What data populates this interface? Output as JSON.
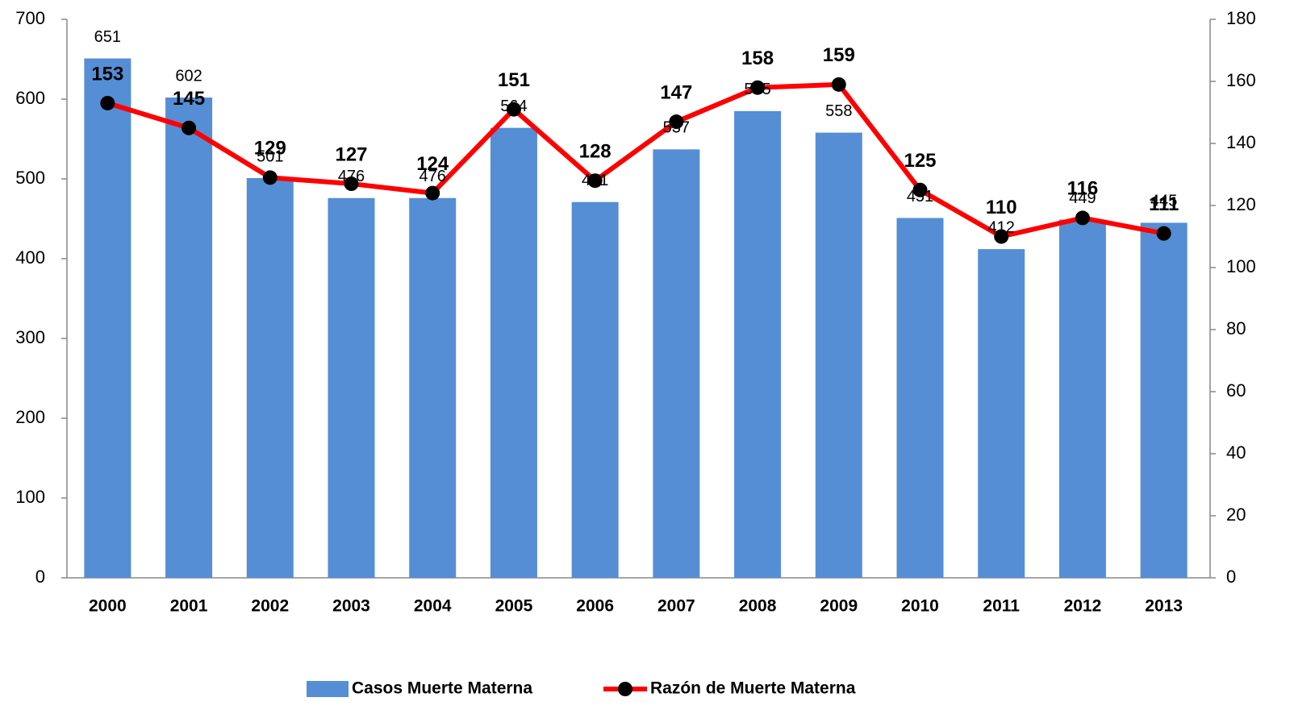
{
  "chart_data": {
    "type": "bar",
    "categories": [
      "2000",
      "2001",
      "2002",
      "2003",
      "2004",
      "2005",
      "2006",
      "2007",
      "2008",
      "2009",
      "2010",
      "2011",
      "2012",
      "2013"
    ],
    "series": [
      {
        "name": "Casos Muerte Materna",
        "type": "bar",
        "color": "#558ed5",
        "values": [
          651,
          602,
          501,
          476,
          476,
          564,
          471,
          537,
          585,
          558,
          451,
          412,
          449,
          445
        ]
      },
      {
        "name": "Razón de Muerte Materna",
        "type": "line",
        "axis": "y2",
        "color": "#ff0000",
        "marker_color": "#000000",
        "values": [
          153,
          145,
          129,
          127,
          124,
          151,
          128,
          147,
          158,
          159,
          125,
          110,
          116,
          111
        ]
      }
    ],
    "ylim": [
      0,
      700
    ],
    "yticks": [
      0,
      100,
      200,
      300,
      400,
      500,
      600,
      700
    ],
    "y2lim": [
      0,
      180
    ],
    "y2ticks": [
      0,
      20,
      40,
      60,
      80,
      100,
      120,
      140,
      160,
      180
    ],
    "grid": false,
    "legend": "bottom"
  }
}
